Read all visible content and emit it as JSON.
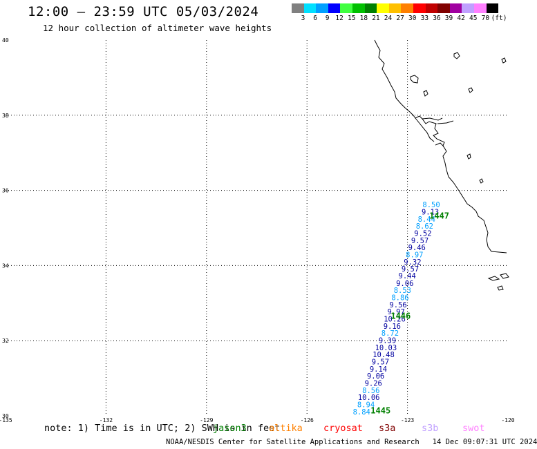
{
  "header": {
    "title": "12:00 – 23:59 UTC 05/03/2024",
    "subtitle": "12 hour collection of altimeter wave heights"
  },
  "legend": {
    "unit": "(ft)",
    "colors": [
      "#808080",
      "#00e0ff",
      "#00a0ff",
      "#0000ff",
      "#40ff40",
      "#00c000",
      "#008000",
      "#ffff00",
      "#ffc000",
      "#ff8000",
      "#ff0000",
      "#c00000",
      "#800000",
      "#a000a0",
      "#c0a0ff",
      "#ff80ff",
      "#000000"
    ],
    "labels": [
      "3",
      "6",
      "9",
      "12",
      "15",
      "18",
      "21",
      "24",
      "27",
      "30",
      "33",
      "36",
      "39",
      "42",
      "45",
      "70"
    ]
  },
  "map": {
    "lon_range": [
      -135,
      -120
    ],
    "lat_range": [
      30,
      40
    ],
    "lat_ticks": [
      "40",
      "38",
      "36",
      "34",
      "32",
      "30"
    ],
    "lon_ticks": [
      "-135",
      "-132",
      "-129",
      "-126",
      "-123",
      "-120"
    ],
    "gridlines": "dotted"
  },
  "track": {
    "passes": [
      {
        "label": "1447",
        "lon": -122.35,
        "lat": 35.25
      },
      {
        "label": "1446",
        "lon": -123.5,
        "lat": 32.58
      },
      {
        "label": "1445",
        "lon": -124.1,
        "lat": 30.06
      }
    ],
    "swh": [
      {
        "value": "8.50",
        "color": "#00a0ff",
        "lon": -122.55,
        "lat": 35.55
      },
      {
        "value": "9.13",
        "color": "#0000a0",
        "lon": -122.58,
        "lat": 35.36
      },
      {
        "value": "8.44",
        "color": "#00a0ff",
        "lon": -122.69,
        "lat": 35.17
      },
      {
        "value": "8.62",
        "color": "#00a0ff",
        "lon": -122.75,
        "lat": 34.98
      },
      {
        "value": "9.52",
        "color": "#0000a0",
        "lon": -122.8,
        "lat": 34.79
      },
      {
        "value": "9.57",
        "color": "#0000a0",
        "lon": -122.89,
        "lat": 34.6
      },
      {
        "value": "9.46",
        "color": "#0000a0",
        "lon": -122.98,
        "lat": 34.41
      },
      {
        "value": "8.97",
        "color": "#00a0ff",
        "lon": -123.05,
        "lat": 34.22
      },
      {
        "value": "9.32",
        "color": "#0000a0",
        "lon": -123.11,
        "lat": 34.03
      },
      {
        "value": "9.57",
        "color": "#0000a0",
        "lon": -123.18,
        "lat": 33.84
      },
      {
        "value": "9.44",
        "color": "#0000a0",
        "lon": -123.27,
        "lat": 33.66
      },
      {
        "value": "9.06",
        "color": "#0000a0",
        "lon": -123.34,
        "lat": 33.46
      },
      {
        "value": "8.53",
        "color": "#00a0ff",
        "lon": -123.41,
        "lat": 33.27
      },
      {
        "value": "8.86",
        "color": "#00a0ff",
        "lon": -123.48,
        "lat": 33.08
      },
      {
        "value": "9.56",
        "color": "#0000a0",
        "lon": -123.54,
        "lat": 32.89
      },
      {
        "value": "9.97",
        "color": "#0000a0",
        "lon": -123.6,
        "lat": 32.7
      },
      {
        "value": "10.26",
        "color": "#0000a0",
        "lon": -123.71,
        "lat": 32.51
      },
      {
        "value": "9.16",
        "color": "#0000a0",
        "lon": -123.72,
        "lat": 32.32
      },
      {
        "value": "8.72",
        "color": "#00a0ff",
        "lon": -123.78,
        "lat": 32.13
      },
      {
        "value": "9.39",
        "color": "#0000a0",
        "lon": -123.86,
        "lat": 31.94
      },
      {
        "value": "10.03",
        "color": "#0000a0",
        "lon": -123.97,
        "lat": 31.75
      },
      {
        "value": "10.48",
        "color": "#0000a0",
        "lon": -124.04,
        "lat": 31.56
      },
      {
        "value": "9.57",
        "color": "#0000a0",
        "lon": -124.07,
        "lat": 31.37
      },
      {
        "value": "9.14",
        "color": "#0000a0",
        "lon": -124.13,
        "lat": 31.18
      },
      {
        "value": "9.06",
        "color": "#0000a0",
        "lon": -124.21,
        "lat": 30.99
      },
      {
        "value": "9.26",
        "color": "#0000a0",
        "lon": -124.28,
        "lat": 30.8
      },
      {
        "value": "8.56",
        "color": "#00a0ff",
        "lon": -124.35,
        "lat": 30.61
      },
      {
        "value": "10.06",
        "color": "#0000a0",
        "lon": -124.48,
        "lat": 30.42
      },
      {
        "value": "8.94",
        "color": "#00a0ff",
        "lon": -124.5,
        "lat": 30.23
      },
      {
        "value": "8.84",
        "color": "#00a0ff",
        "lon": -124.63,
        "lat": 30.04
      }
    ]
  },
  "footer": {
    "note": "note: 1) Time is in UTC; 2) SWH is in feet",
    "satellites": [
      {
        "name": "jason3",
        "color": "#008000"
      },
      {
        "name": "altika",
        "color": "#ff8000"
      },
      {
        "name": "cryosat",
        "color": "#ff0000"
      },
      {
        "name": "s3a",
        "color": "#800000"
      },
      {
        "name": "s3b",
        "color": "#c0a0ff"
      },
      {
        "name": "swot",
        "color": "#ff80ff"
      }
    ],
    "credit": "NOAA/NESDIS Center for Satellite Applications and Research",
    "timestamp": "14 Dec 09:07:31 UTC 2024"
  }
}
